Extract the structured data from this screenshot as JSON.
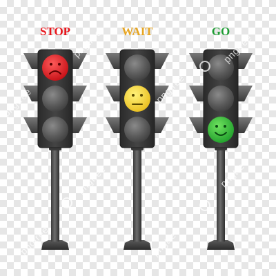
{
  "labels": {
    "stop": "STOP",
    "wait": "WAIT",
    "go": "GO"
  },
  "watermark": "pngtree",
  "colors": {
    "stop": "#e8141a",
    "wait": "#e7a521",
    "go": "#1e9c33",
    "red_face": "#e11b22",
    "yellow_face": "#f7d73b",
    "green_face": "#3cc044",
    "housing": "#3a3a3a",
    "pole": "#555555",
    "unlit": "#5e5e5e"
  },
  "icons": {
    "red": "sad-face-icon",
    "yellow": "neutral-face-icon",
    "green": "smiley-face-icon"
  }
}
